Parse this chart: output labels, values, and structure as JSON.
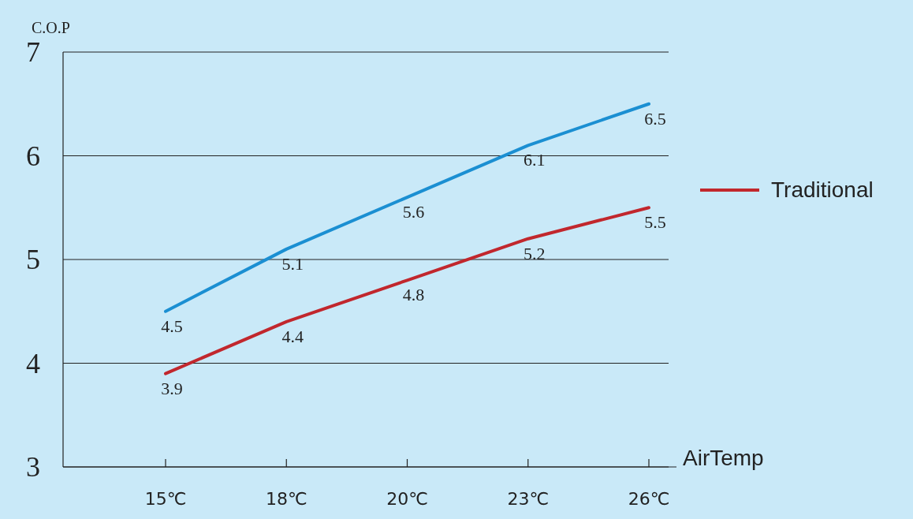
{
  "chart_data": {
    "type": "line",
    "ylabel": "C.O.P",
    "xlabel": "AirTemp",
    "categories": [
      "15℃",
      "18℃",
      "20℃",
      "23℃",
      "26℃"
    ],
    "series": [
      {
        "color": "#1b8fd2",
        "values": [
          4.5,
          5.1,
          5.6,
          6.1,
          6.5
        ]
      },
      {
        "name": "Traditional",
        "color": "#c1272d",
        "values": [
          3.9,
          4.4,
          4.8,
          5.2,
          5.5
        ]
      }
    ],
    "ylim": [
      3,
      7
    ],
    "yticks": [
      3,
      4,
      5,
      6,
      7
    ],
    "grid": "y",
    "legend": "right",
    "data_labels": true,
    "marker": "none",
    "line_style": "solid"
  }
}
